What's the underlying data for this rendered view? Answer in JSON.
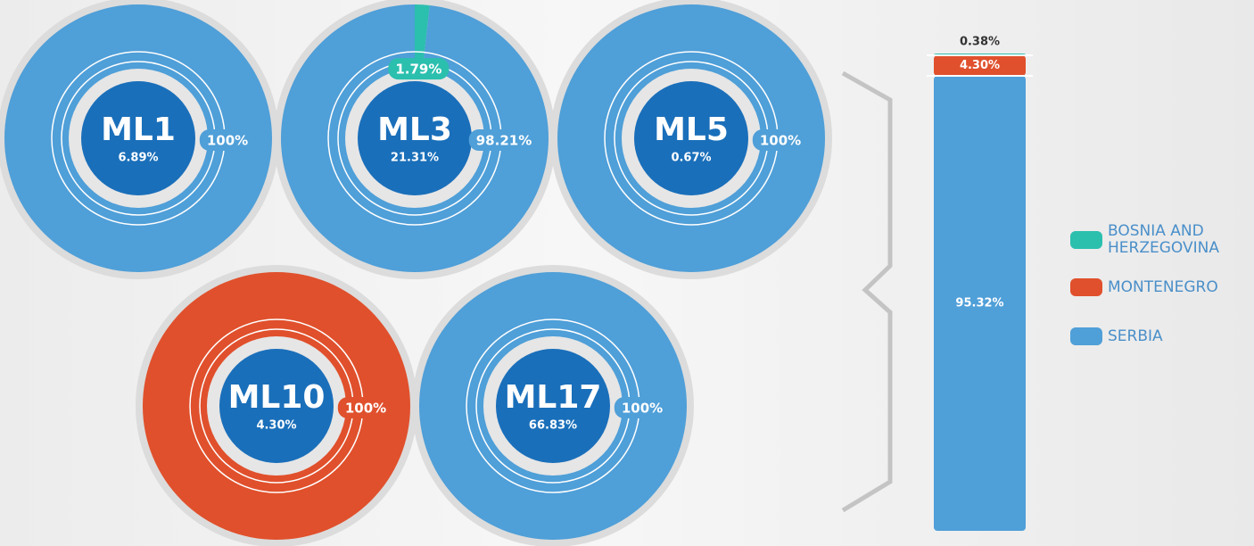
{
  "chart_data": [
    {
      "type": "donut",
      "title": "ML1",
      "subtitle": "6.89%",
      "values": [
        100
      ],
      "value_labels": [
        "100%"
      ],
      "colors": [
        "#4f9fd8"
      ]
    },
    {
      "type": "donut",
      "title": "ML3",
      "subtitle": "21.31%",
      "values": [
        1.79,
        98.21
      ],
      "value_labels": [
        "1.79%",
        "98.21%"
      ],
      "colors": [
        "#2bbfae",
        "#4f9fd8"
      ]
    },
    {
      "type": "donut",
      "title": "ML5",
      "subtitle": "0.67%",
      "values": [
        100
      ],
      "value_labels": [
        "100%"
      ],
      "colors": [
        "#4f9fd8"
      ]
    },
    {
      "type": "donut",
      "title": "ML10",
      "subtitle": "4.30%",
      "values": [
        100
      ],
      "value_labels": [
        "100%"
      ],
      "colors": [
        "#e0502c"
      ]
    },
    {
      "type": "donut",
      "title": "ML17",
      "subtitle": "66.83%",
      "values": [
        100
      ],
      "value_labels": [
        "100%"
      ],
      "colors": [
        "#4f9fd8"
      ]
    },
    {
      "type": "stacked_bar",
      "ylim": [
        0,
        100
      ],
      "series": [
        {
          "name": "BOSNIA AND HERZEGOVINA",
          "color": "#2bbfae",
          "values": [
            0.38
          ],
          "value_labels": [
            "0.38%"
          ]
        },
        {
          "name": "MONTENEGRO",
          "color": "#e0502c",
          "values": [
            4.3
          ],
          "value_labels": [
            "4.30%"
          ]
        },
        {
          "name": "SERBIA",
          "color": "#4f9fd8",
          "values": [
            95.32
          ],
          "value_labels": [
            "95.32%"
          ]
        }
      ]
    }
  ]
}
